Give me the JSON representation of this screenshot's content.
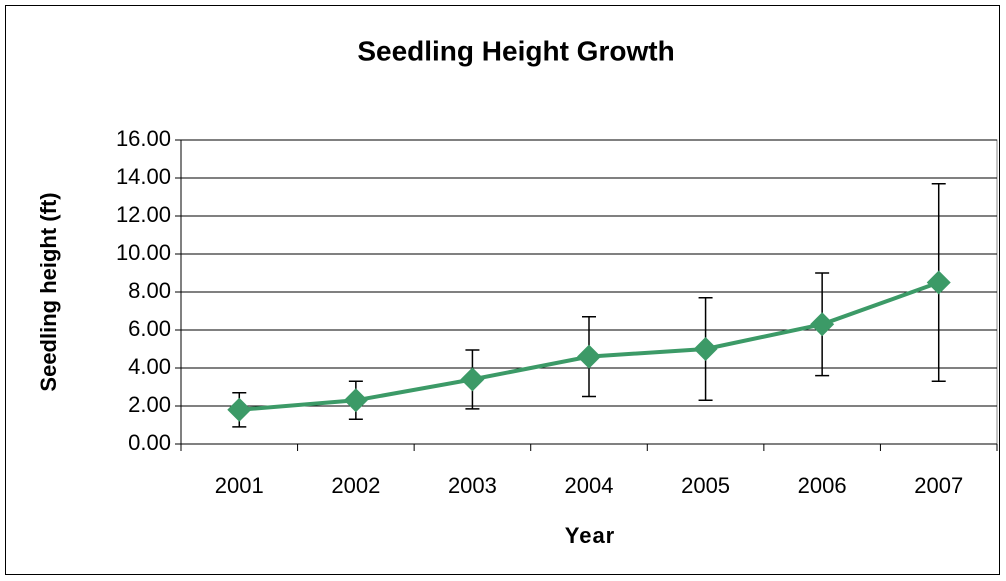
{
  "chart_data": {
    "type": "line",
    "title": "Seedling Height Growth",
    "x_label": "Year",
    "y_label": "Seedling height (ft)",
    "categories": [
      "2001",
      "2002",
      "2003",
      "2004",
      "2005",
      "2006",
      "2007"
    ],
    "series": [
      {
        "name": "Seedling height",
        "color": "#3c9a67",
        "values": [
          1.8,
          2.3,
          3.4,
          4.6,
          5.0,
          6.3,
          8.5
        ],
        "errors": [
          0.9,
          1.0,
          1.55,
          2.1,
          2.7,
          2.7,
          5.2
        ]
      }
    ],
    "ylim": [
      0,
      16
    ],
    "yticks": [
      {
        "value": 0,
        "label": "0.00"
      },
      {
        "value": 2,
        "label": "2.00"
      },
      {
        "value": 4,
        "label": "4.00"
      },
      {
        "value": 6,
        "label": "6.00"
      },
      {
        "value": 8,
        "label": "8.00"
      },
      {
        "value": 10,
        "label": "10.00"
      },
      {
        "value": 12,
        "label": "12.00"
      },
      {
        "value": 14,
        "label": "14.00"
      },
      {
        "value": 16,
        "label": "16.00"
      }
    ],
    "grid": true
  }
}
